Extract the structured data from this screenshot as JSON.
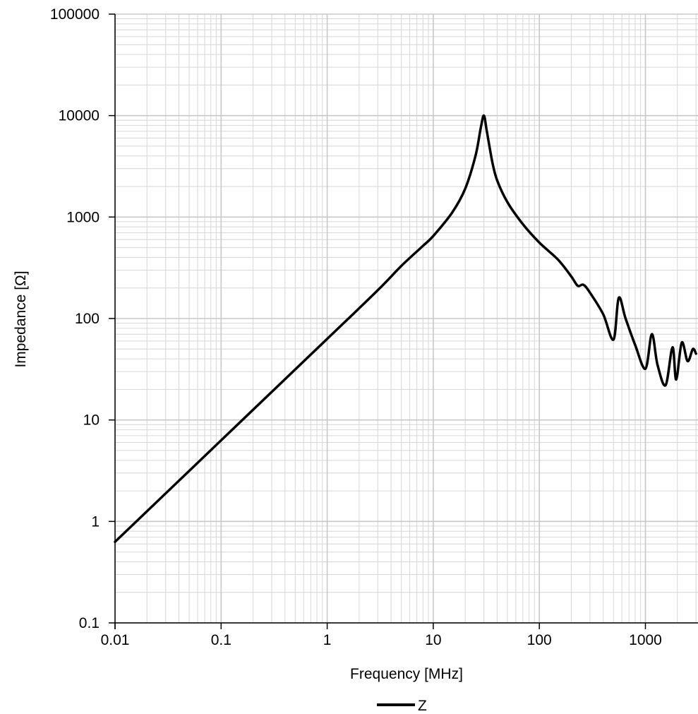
{
  "chart_data": {
    "type": "line",
    "title": "",
    "xlabel": "Frequency [MHz]",
    "ylabel": "Impedance [Ω]",
    "xscale": "log",
    "yscale": "log",
    "xlim": [
      0.01,
      3000
    ],
    "ylim": [
      0.1,
      100000
    ],
    "grid": true,
    "legend_position": "bottom",
    "x_tick_labels": [
      "0.01",
      "0.1",
      "1",
      "10",
      "100",
      "1000"
    ],
    "y_tick_labels": [
      "0.1",
      "1",
      "10",
      "100",
      "1000",
      "10000",
      "100000"
    ],
    "series": [
      {
        "name": "Z",
        "color": "#000000",
        "points": [
          [
            0.01,
            0.63
          ],
          [
            0.1,
            6.3
          ],
          [
            1,
            63
          ],
          [
            3,
            190
          ],
          [
            5,
            330
          ],
          [
            8,
            520
          ],
          [
            10,
            650
          ],
          [
            15,
            1100
          ],
          [
            20,
            1900
          ],
          [
            25,
            4000
          ],
          [
            28,
            7500
          ],
          [
            30,
            10000
          ],
          [
            32,
            7000
          ],
          [
            36,
            3500
          ],
          [
            40,
            2300
          ],
          [
            50,
            1400
          ],
          [
            70,
            850
          ],
          [
            100,
            560
          ],
          [
            150,
            380
          ],
          [
            200,
            260
          ],
          [
            230,
            210
          ],
          [
            260,
            215
          ],
          [
            300,
            180
          ],
          [
            400,
            110
          ],
          [
            500,
            62
          ],
          [
            560,
            160
          ],
          [
            650,
            100
          ],
          [
            800,
            55
          ],
          [
            1000,
            32
          ],
          [
            1150,
            70
          ],
          [
            1300,
            35
          ],
          [
            1550,
            22
          ],
          [
            1800,
            52
          ],
          [
            1950,
            25
          ],
          [
            2200,
            58
          ],
          [
            2500,
            38
          ],
          [
            2800,
            50
          ],
          [
            3000,
            45
          ]
        ]
      }
    ]
  },
  "legend": {
    "label": "Z"
  }
}
